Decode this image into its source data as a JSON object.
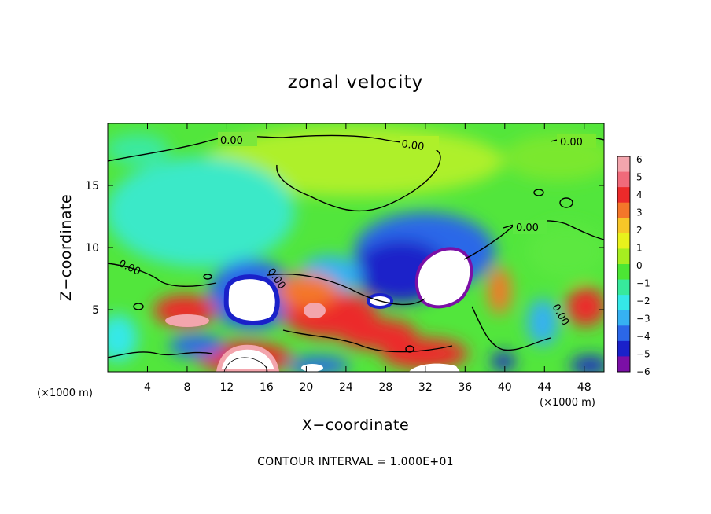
{
  "chart_data": {
    "type": "heatmap",
    "title": "zonal velocity",
    "xlabel": "X−coordinate",
    "ylabel": "Z−coordinate",
    "x_unit_label": "(×1000 m)",
    "x_unit_label_right": "(×1000 m)",
    "xlim": [
      0,
      50
    ],
    "ylim": [
      0,
      20
    ],
    "x_ticks": [
      4,
      8,
      12,
      16,
      20,
      24,
      28,
      32,
      36,
      40,
      44,
      48
    ],
    "y_ticks": [
      5,
      10,
      15
    ],
    "colorbar": {
      "ticks": [
        "6",
        "5",
        "4",
        "3",
        "2",
        "1",
        "0",
        "−1",
        "−2",
        "−3",
        "−4",
        "−5",
        "−6"
      ],
      "range": [
        -6,
        6
      ],
      "colors": [
        "#f3a5ad",
        "#f06a7a",
        "#ec2a2a",
        "#f4772a",
        "#f7c628",
        "#e8f21c",
        "#a6ee20",
        "#4ce634",
        "#37e99c",
        "#35e8e8",
        "#36b1f2",
        "#2b67e8",
        "#1a21c9",
        "#7b0fa6"
      ]
    },
    "contour_labels": [
      "0.00",
      "0.00",
      "0.00",
      "0.00",
      "0.00",
      "0.00",
      "0.00"
    ],
    "contour_interval_text": "CONTOUR INTERVAL = 1.000E+01",
    "field_features": [
      {
        "x": 14.0,
        "z": 6.0,
        "value": -6.5
      },
      {
        "x": 34.0,
        "z": 8.5,
        "value": -6.3
      },
      {
        "x": 27.0,
        "z": 5.6,
        "value": -5.5
      },
      {
        "x": 30.5,
        "z": 11.0,
        "value": -4.5
      },
      {
        "x": 20.5,
        "z": 4.0,
        "value": 5.0
      },
      {
        "x": 7.0,
        "z": 4.2,
        "value": 5.2
      },
      {
        "x": 14.5,
        "z": 1.2,
        "value": 6.0
      },
      {
        "x": 33.0,
        "z": 1.0,
        "value": 5.0
      },
      {
        "x": 20.0,
        "z": 0.4,
        "value": 6.0
      },
      {
        "x": 44.5,
        "z": 5.2,
        "value": 4.0
      },
      {
        "x": 28.0,
        "z": 16.5,
        "value": 1.3
      },
      {
        "x": 10.0,
        "z": 14.0,
        "value": -1.8
      }
    ]
  }
}
